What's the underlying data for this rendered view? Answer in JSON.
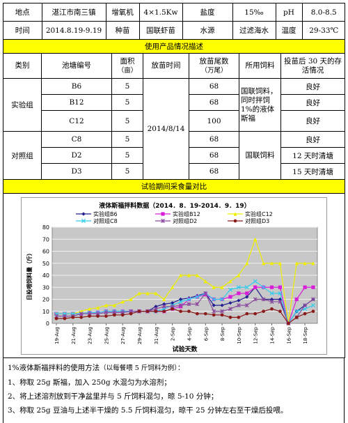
{
  "info": {
    "place_label": "地点",
    "place_value": "湛江市南三镇",
    "aerator_label": "增氧机",
    "aerator_value": "4×1.5Kw",
    "salinity_label": "盐度",
    "salinity_value": "15‰",
    "ph_label": "pH",
    "ph_value": "8.0-8.5",
    "time_label": "时间",
    "time_value": "2014.8.19-9.19",
    "seed_label": "种苗",
    "seed_value": "国联虾苗",
    "water_label": "水源",
    "water_value": "过滤海水",
    "temp_label": "温度",
    "temp_value": "29-33℃"
  },
  "product_header": "使用产品情况描述",
  "columns": {
    "category": "类别",
    "pond_id": "池塘编号",
    "area": "面积",
    "area_unit": "（亩）",
    "release_time": "放苗时间",
    "count": "放苗尾数",
    "count_unit": "（万尾）",
    "feed": "所用饲料",
    "survival": "投苗后 30 天的存活情况"
  },
  "groups": {
    "experimental": "实验组",
    "control": "对照组"
  },
  "release_date": "2014/8/14",
  "feed_experimental": "国联饲料，同时拌饲1%的液体斯福",
  "feed_control": "国联饲料",
  "rows": [
    {
      "pond": "B6",
      "area": "5",
      "count": "68",
      "survival": "良好"
    },
    {
      "pond": "B12",
      "area": "5",
      "count": "68",
      "survival": "良好"
    },
    {
      "pond": "C12",
      "area": "5",
      "count": "100",
      "survival": "良好"
    },
    {
      "pond": "C8",
      "area": "5",
      "count": "68",
      "survival": "良好"
    },
    {
      "pond": "D2",
      "area": "5",
      "count": "68",
      "survival": "12 天时清塘"
    },
    {
      "pond": "D3",
      "area": "5",
      "count": "68",
      "survival": "15 天时清塘"
    }
  ],
  "intake_header": "试验期间采食量对比",
  "chart_data": {
    "type": "line",
    "title": "液体斯福拌料数据（2014．8．19-2014．9．19）",
    "xlabel": "试验天数",
    "ylabel": "日投喂饲料量（斤）",
    "ylim": [
      0,
      80
    ],
    "yticks": [
      0,
      10,
      20,
      30,
      40,
      50,
      60,
      70,
      80
    ],
    "grid": true,
    "legend_position": "top",
    "categories": [
      "19-Aug",
      "20-Aug",
      "21-Aug",
      "22-Aug",
      "23-Aug",
      "24-Aug",
      "25-Aug",
      "26-Aug",
      "27-Aug",
      "28-Aug",
      "29-Aug",
      "30-Aug",
      "31-Aug",
      "1-Sep",
      "2-Sep",
      "3-Sep",
      "4-Sep",
      "5-Sep",
      "6-Sep",
      "7-Sep",
      "8-Sep",
      "9-Sep",
      "10-Sep",
      "11-Sep",
      "12-Sep",
      "13-Sep",
      "14-Sep",
      "15-Sep",
      "16-Sep",
      "17-Sep",
      "18-Sep",
      "19-Sep"
    ],
    "tick_labels": [
      "19-Aug",
      "21-Aug",
      "23-Aug",
      "25-Aug",
      "27-Aug",
      "29-Aug",
      "31-Aug",
      "2-Sep",
      "4-Sep",
      "6-Sep",
      "8-Sep",
      "10-Sep",
      "12-Sep",
      "14-Sep",
      "16-Sep",
      "18-Sep"
    ],
    "series": [
      {
        "name": "实验组B6",
        "color": "#1f1f8f",
        "marker": "diamond",
        "values": [
          8,
          8,
          8,
          8,
          9,
          9,
          10,
          10,
          10,
          10,
          10,
          10,
          14,
          16,
          17,
          20,
          21,
          23,
          25,
          15,
          15,
          17,
          19,
          22,
          30,
          20,
          20,
          20,
          0,
          10,
          15,
          20
        ]
      },
      {
        "name": "实验组B12",
        "color": "#d81fd8",
        "marker": "square",
        "values": [
          8,
          8,
          8,
          8,
          9,
          9,
          10,
          10,
          10,
          10,
          10,
          10,
          10,
          10,
          12,
          14,
          20,
          22,
          24,
          20,
          20,
          22,
          25,
          25,
          30,
          30,
          30,
          30,
          0,
          20,
          30,
          30
        ]
      },
      {
        "name": "实验组C12",
        "color": "#eeee00",
        "marker": "triangle",
        "values": [
          8,
          8,
          8,
          10,
          12,
          13,
          15,
          15,
          18,
          20,
          25,
          25,
          25,
          20,
          30,
          40,
          40,
          40,
          35,
          30,
          30,
          35,
          40,
          50,
          70,
          50,
          50,
          50,
          0,
          50,
          50,
          50
        ]
      },
      {
        "name": "对照组C8",
        "color": "#33ccee",
        "marker": "x",
        "values": [
          8,
          8,
          8,
          8,
          9,
          9,
          10,
          10,
          10,
          10,
          10,
          10,
          10,
          12,
          15,
          18,
          20,
          22,
          25,
          20,
          20,
          28,
          30,
          30,
          35,
          30,
          25,
          25,
          0,
          10,
          12,
          15
        ]
      },
      {
        "name": "对照组D2",
        "color": "#8b4aa0",
        "marker": "star",
        "values": [
          6,
          6,
          6,
          8,
          8,
          8,
          9,
          9,
          9,
          10,
          10,
          10,
          12,
          14,
          14,
          15,
          16,
          16,
          25,
          10,
          10,
          12,
          15,
          15,
          20,
          20,
          18,
          18,
          0,
          5,
          15,
          20
        ]
      },
      {
        "name": "对照组D3",
        "color": "#8b1a1a",
        "marker": "circle",
        "values": [
          4,
          4,
          5,
          5,
          6,
          6,
          6,
          7,
          7,
          8,
          10,
          10,
          10,
          10,
          12,
          10,
          10,
          8,
          8,
          7,
          7,
          5,
          5,
          8,
          8,
          10,
          12,
          10,
          0,
          5,
          8,
          10
        ]
      }
    ]
  },
  "notes": {
    "title": "1%液体斯福拌料的使用方法",
    "title_note": "（以每餐喂 5 斤饲料为例）：",
    "step1": "1、称取 25g 斯福，加入 250g 水混匀为水溶剂；",
    "step2": "2、将上述溶剂放到干净盆里并与 5 斤饲料混匀，晾 5-10 分钟；",
    "step3": "3、称取 25g 豆油与上述半干燥的 5.5 斤饲料混匀，晾干 25 分钟左右至干燥后投喂。"
  }
}
